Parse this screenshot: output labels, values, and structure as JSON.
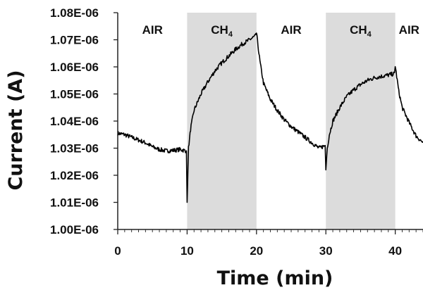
{
  "chart_data": {
    "type": "line",
    "title": "",
    "xlabel": "Time (min)",
    "ylabel": "Current (A)",
    "xlim": [
      0,
      44
    ],
    "ylim": [
      1e-06,
      1.08e-06
    ],
    "x_ticks": [
      0,
      10,
      20,
      30,
      40
    ],
    "x_tick_labels": [
      "0",
      "10",
      "20",
      "30",
      "40"
    ],
    "y_ticks": [
      1e-06,
      1.01e-06,
      1.02e-06,
      1.03e-06,
      1.04e-06,
      1.05e-06,
      1.06e-06,
      1.07e-06,
      1.08e-06
    ],
    "y_tick_labels": [
      "1.00E-06",
      "1.01E-06",
      "1.02E-06",
      "1.03E-06",
      "1.04E-06",
      "1.05E-06",
      "1.06E-06",
      "1.07E-06",
      "1.08E-06"
    ],
    "grid": false,
    "line_color": "#000000",
    "shade_color": "#dcdcdc",
    "regions": [
      {
        "label": "AIR",
        "sub": "",
        "x0": 0,
        "x1": 10,
        "shaded": false
      },
      {
        "label": "CH",
        "sub": "4",
        "x0": 10,
        "x1": 20,
        "shaded": true
      },
      {
        "label": "AIR",
        "sub": "",
        "x0": 20,
        "x1": 30,
        "shaded": false
      },
      {
        "label": "CH",
        "sub": "4",
        "x0": 30,
        "x1": 40,
        "shaded": true
      },
      {
        "label": "AIR",
        "sub": "",
        "x0": 40,
        "x1": 44,
        "shaded": false
      }
    ],
    "series": [
      {
        "x": [
          0,
          1,
          2,
          3,
          4,
          5,
          6,
          7,
          8,
          9,
          9.9,
          10.0,
          10.2,
          10.5,
          11,
          12,
          13,
          14,
          15,
          16,
          17,
          18,
          19,
          19.9,
          20.0,
          20.5,
          21,
          22,
          23,
          24,
          25,
          26,
          27,
          28,
          29,
          29.9,
          30.0,
          30.2,
          30.5,
          31,
          32,
          33,
          34,
          35,
          36,
          37,
          38,
          39,
          39.9,
          40.0,
          40.5,
          41,
          42,
          43,
          44
        ],
        "y": [
          1.0355e-06,
          1.035e-06,
          1.034e-06,
          1.033e-06,
          1.032e-06,
          1.0305e-06,
          1.0295e-06,
          1.029e-06,
          1.0292e-06,
          1.0295e-06,
          1.029e-06,
          1.01e-06,
          1.03e-06,
          1.037e-06,
          1.044e-06,
          1.05e-06,
          1.0545e-06,
          1.0585e-06,
          1.0615e-06,
          1.064e-06,
          1.0665e-06,
          1.0685e-06,
          1.07e-06,
          1.0715e-06,
          1.0725e-06,
          1.062e-06,
          1.054e-06,
          1.048e-06,
          1.044e-06,
          1.0405e-06,
          1.038e-06,
          1.036e-06,
          1.034e-06,
          1.032e-06,
          1.03e-06,
          1.031e-06,
          1.022e-06,
          1.03e-06,
          1.035e-06,
          1.04e-06,
          1.045e-06,
          1.049e-06,
          1.0515e-06,
          1.0535e-06,
          1.055e-06,
          1.056e-06,
          1.0565e-06,
          1.057e-06,
          1.0575e-06,
          1.0605e-06,
          1.051e-06,
          1.045e-06,
          1.0395e-06,
          1.0345e-06,
          1.032e-06
        ]
      }
    ]
  }
}
